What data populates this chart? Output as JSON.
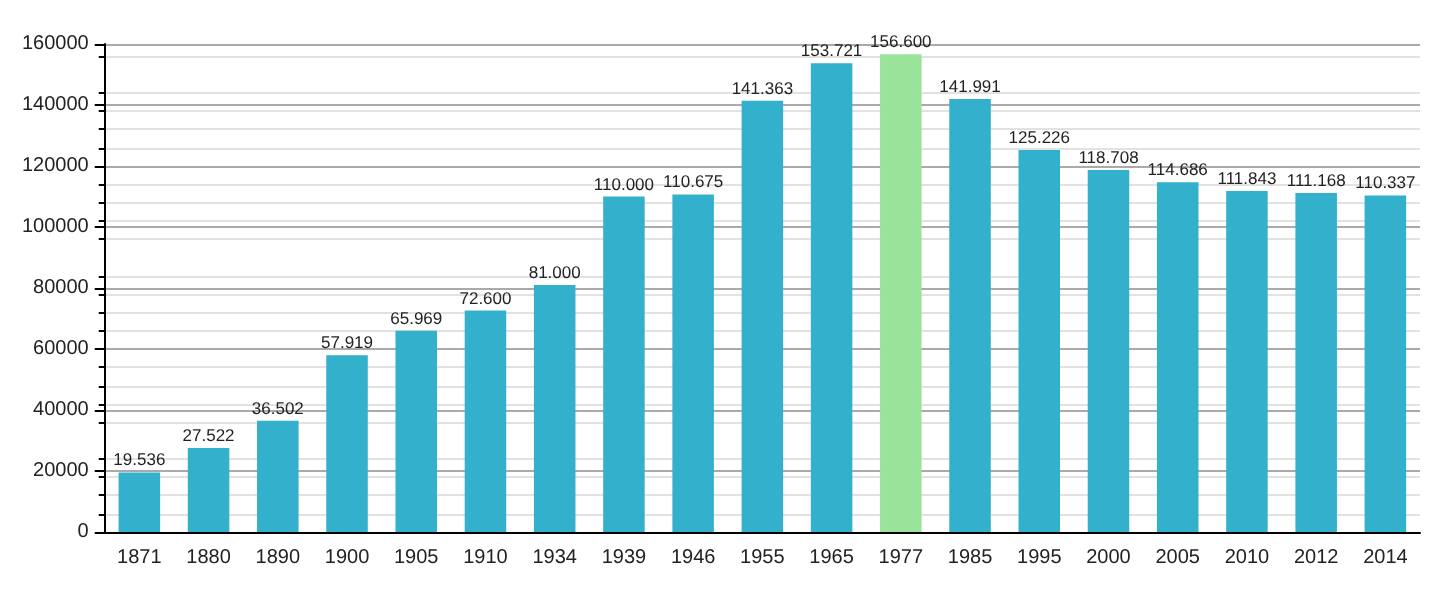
{
  "chart_data": {
    "type": "bar",
    "categories": [
      "1871",
      "1880",
      "1890",
      "1900",
      "1905",
      "1910",
      "1934",
      "1939",
      "1946",
      "1955",
      "1965",
      "1977",
      "1985",
      "1995",
      "2000",
      "2005",
      "2010",
      "2012",
      "2014"
    ],
    "values": [
      19536,
      27522,
      36502,
      57919,
      65969,
      72600,
      81000,
      110000,
      110675,
      141363,
      153721,
      156600,
      141991,
      125226,
      118708,
      114686,
      111843,
      111168,
      110337
    ],
    "colors": [
      "#33b1cc",
      "#33b1cc",
      "#33b1cc",
      "#33b1cc",
      "#33b1cc",
      "#33b1cc",
      "#33b1cc",
      "#33b1cc",
      "#33b1cc",
      "#33b1cc",
      "#33b1cc",
      "#99e39a",
      "#33b1cc",
      "#33b1cc",
      "#33b1cc",
      "#33b1cc",
      "#33b1cc",
      "#33b1cc",
      "#33b1cc"
    ],
    "value_labels": [
      "19.536",
      "27.522",
      "36.502",
      "57.919",
      "65.969",
      "72.600",
      "81.000",
      "110.000",
      "110.675",
      "141.363",
      "153.721",
      "156.600",
      "141.991",
      "125.226",
      "118.708",
      "114.686",
      "111.843",
      "111.168",
      "110.337"
    ],
    "ylim": [
      0,
      160000
    ],
    "yticks": [
      0,
      20000,
      40000,
      60000,
      80000,
      100000,
      120000,
      140000,
      160000
    ],
    "grid": "y"
  }
}
